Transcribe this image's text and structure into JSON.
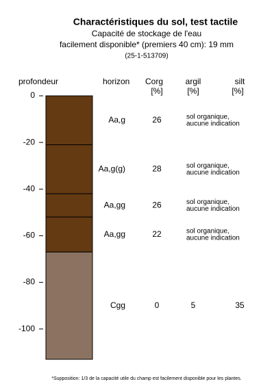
{
  "chart_data": {
    "type": "soil-profile",
    "title": "Charactéristiques du sol, test tactile",
    "subtitle": [
      "Capacité de stockage de l'eau",
      "facilement disponible* (premiers 40 cm): 19 mm",
      "(25-1-513709)"
    ],
    "y_label": "profondeur",
    "headers": {
      "horizon": "horizon",
      "corg": [
        "Corg",
        "[%]"
      ],
      "argil": [
        "argil",
        "[%]"
      ],
      "silt": [
        "silt",
        "[%]"
      ]
    },
    "ylim": [
      -113,
      0
    ],
    "yticks": [
      0,
      -20,
      -40,
      -60,
      -80,
      -100
    ],
    "layers": [
      {
        "top": 0,
        "bottom": -21,
        "color": "#643a13",
        "horizon": "Aa,g",
        "corg": 26,
        "note": [
          "sol organique,",
          "aucune indication"
        ]
      },
      {
        "top": -21,
        "bottom": -42,
        "color": "#643a13",
        "horizon": "Aa,g(g)",
        "corg": 28,
        "note": [
          "sol organique,",
          "aucune indication"
        ]
      },
      {
        "top": -42,
        "bottom": -52,
        "color": "#643a13",
        "horizon": "Aa,gg",
        "corg": 26,
        "note": [
          "sol organique,",
          "aucune indication"
        ]
      },
      {
        "top": -52,
        "bottom": -67,
        "color": "#643a13",
        "horizon": "Aa,gg",
        "corg": 22,
        "note": [
          "sol organique,",
          "aucune indication"
        ]
      },
      {
        "top": -67,
        "bottom": -113,
        "color": "#8c7361",
        "horizon": "Cgg",
        "corg": 0,
        "argil": 5,
        "silt": 35
      }
    ],
    "footnote": "*Supposition: 1/3 de la capacité utile du champ est facilement disponible pour les plantes."
  }
}
